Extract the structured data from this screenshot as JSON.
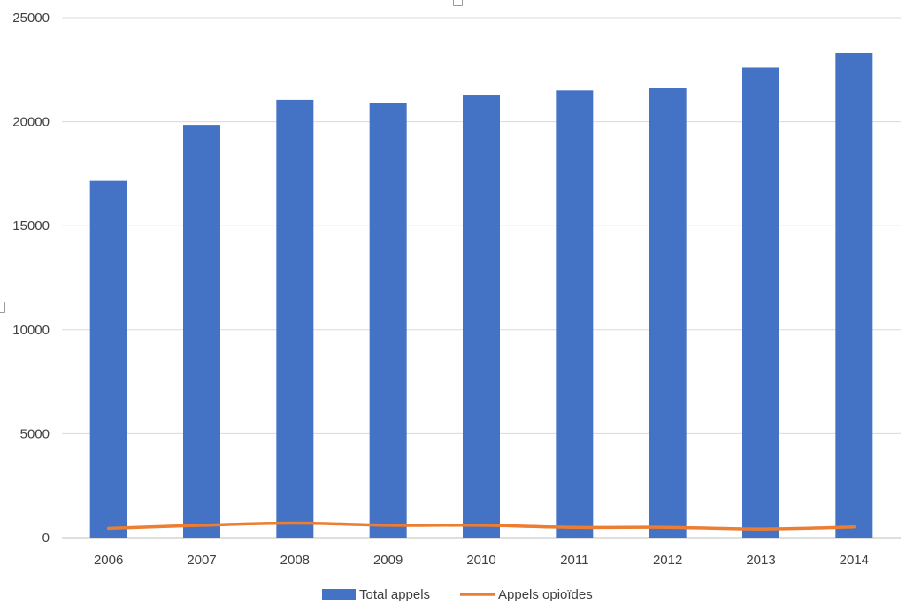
{
  "chart_data": {
    "type": "bar",
    "categories": [
      "2006",
      "2007",
      "2008",
      "2009",
      "2010",
      "2011",
      "2012",
      "2013",
      "2014"
    ],
    "series": [
      {
        "name": "Total appels",
        "type": "bar",
        "color": "#4472C4",
        "values": [
          17150,
          19850,
          21050,
          20900,
          21300,
          21500,
          21600,
          22600,
          23300
        ]
      },
      {
        "name": "Appels opioïdes",
        "type": "line",
        "color": "#ED7D31",
        "values": [
          450,
          600,
          700,
          600,
          600,
          500,
          500,
          420,
          520
        ]
      }
    ],
    "title": "",
    "xlabel": "",
    "ylabel": "",
    "ylim": [
      0,
      25000
    ],
    "yticks": [
      "0",
      "5000",
      "10000",
      "15000",
      "20000",
      "25000"
    ],
    "grid": true,
    "legend_position": "bottom"
  }
}
